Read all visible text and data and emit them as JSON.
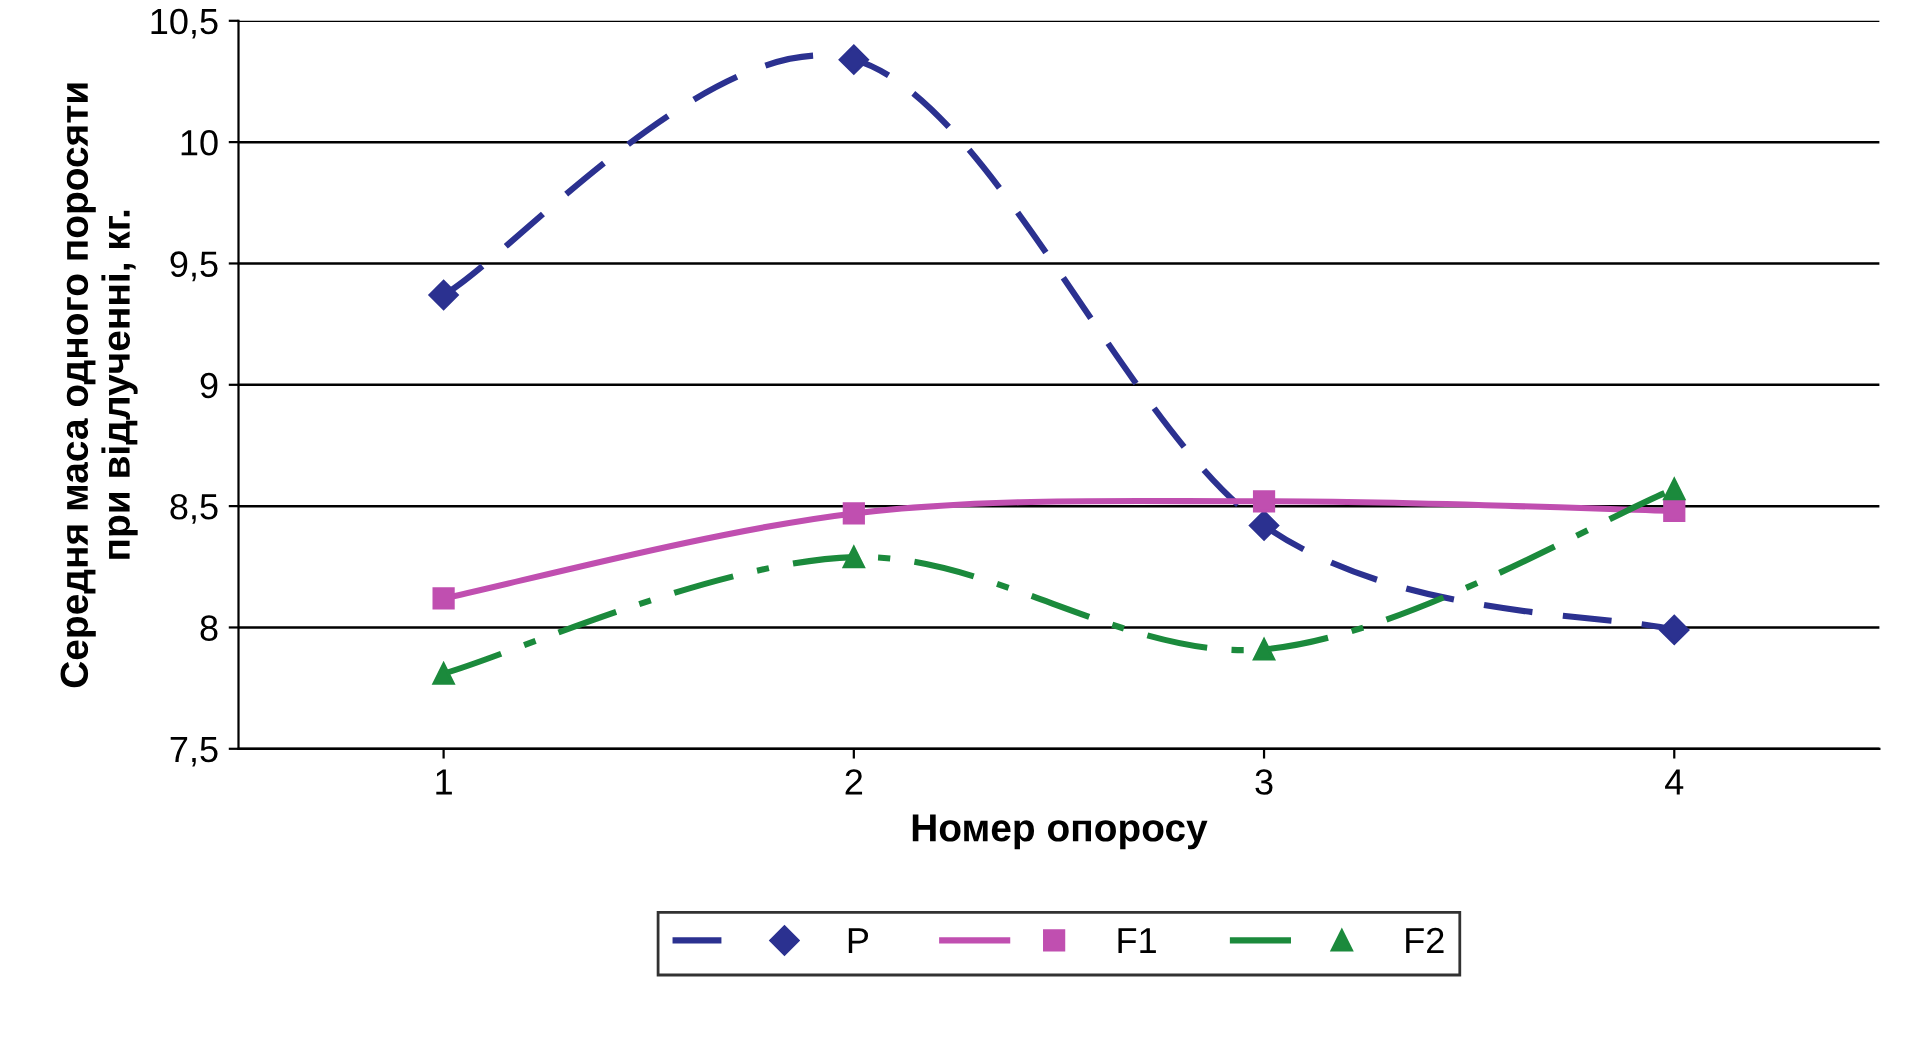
{
  "chart_data": {
    "type": "line",
    "xlabel": "Номер опоросу",
    "ylabel": "Середня маса одного поросяти\nпри відлученні, кг.",
    "categories": [
      "1",
      "2",
      "3",
      "4"
    ],
    "series": [
      {
        "name": "P",
        "color": "#2b3190",
        "values": [
          9.37,
          10.34,
          8.42,
          7.99
        ],
        "marker": "diamond",
        "line_style": "dashed"
      },
      {
        "name": "F1",
        "color": "#c04fb0",
        "values": [
          8.12,
          8.47,
          8.52,
          8.48
        ],
        "marker": "square",
        "line_style": "solid"
      },
      {
        "name": "F2",
        "color": "#1b8a3c",
        "values": [
          7.81,
          8.29,
          7.91,
          8.57
        ],
        "marker": "triangle",
        "line_style": "dashdot"
      }
    ],
    "ylim": [
      7.5,
      10.5
    ],
    "yticks": [
      {
        "value": 7.5,
        "label": "7,5"
      },
      8,
      {
        "value": 8.5,
        "label": "8,5"
      },
      9,
      {
        "value": 9.5,
        "label": "9,5"
      },
      10,
      {
        "value": 10.5,
        "label": "10,5"
      }
    ],
    "grid": "y",
    "legend": "bottom"
  }
}
